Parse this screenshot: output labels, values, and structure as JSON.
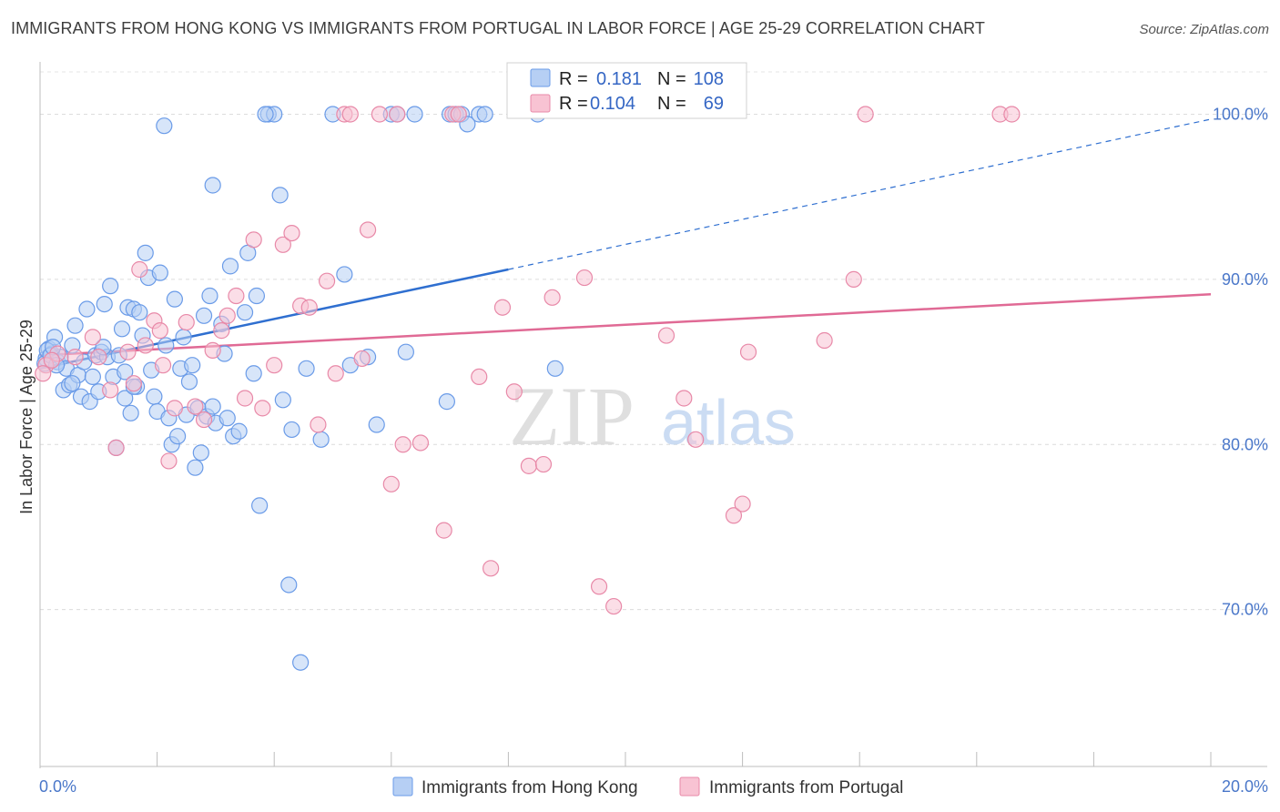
{
  "title": "IMMIGRANTS FROM HONG KONG VS IMMIGRANTS FROM PORTUGAL IN LABOR FORCE | AGE 25-29 CORRELATION CHART",
  "source": "Source: ZipAtlas.com",
  "watermark": {
    "zip": "ZIP",
    "atlas": "atlas"
  },
  "stats_box": {
    "rows": [
      {
        "r_label": "R =",
        "r_value": "0.181",
        "n_label": "N =",
        "n_value": "108",
        "color": "#6a9be8",
        "fill": "#b6cff4"
      },
      {
        "r_label": "R =",
        "r_value": "0.104",
        "n_label": "N =",
        "n_value": "69",
        "color": "#e889a8",
        "fill": "#f8c3d3"
      }
    ]
  },
  "chart_data": {
    "type": "scatter",
    "title": "IMMIGRANTS FROM HONG KONG VS IMMIGRANTS FROM PORTUGAL IN LABOR FORCE | AGE 25-29 CORRELATION CHART",
    "xlabel": "",
    "ylabel": "In Labor Force | Age 25-29",
    "xlim": [
      0,
      20
    ],
    "ylim": [
      60.5,
      103.5
    ],
    "x_tick_labels": [
      "0.0%",
      "20.0%"
    ],
    "y_ticks": [
      70,
      80,
      90,
      100
    ],
    "y_tick_labels": [
      "70.0%",
      "80.0%",
      "90.0%",
      "100.0%"
    ],
    "grid": true,
    "legend_position": "bottom-center",
    "series": [
      {
        "name": "Immigrants from Hong Kong",
        "color": "#6a9be8",
        "fill": "#b6cff4",
        "trend": {
          "x0": 0.0,
          "y0": 84.6,
          "x1": 8.0,
          "y1": 90.6,
          "x_dash_end": 20.0,
          "y_dash_end": 99.7,
          "color": "#2f6fd0"
        },
        "points": [
          [
            0.1,
            85.2
          ],
          [
            0.15,
            85.8
          ],
          [
            0.2,
            85.5
          ],
          [
            0.25,
            86.5
          ],
          [
            0.3,
            85.0
          ],
          [
            0.35,
            85.3
          ],
          [
            0.4,
            83.3
          ],
          [
            0.45,
            84.6
          ],
          [
            0.5,
            83.6
          ],
          [
            0.55,
            86.0
          ],
          [
            0.6,
            87.2
          ],
          [
            0.65,
            84.2
          ],
          [
            0.7,
            82.9
          ],
          [
            0.75,
            85.0
          ],
          [
            0.8,
            88.2
          ],
          [
            0.85,
            82.6
          ],
          [
            0.9,
            84.1
          ],
          [
            0.95,
            85.4
          ],
          [
            1.0,
            83.2
          ],
          [
            1.05,
            85.6
          ],
          [
            1.1,
            88.5
          ],
          [
            1.15,
            85.3
          ],
          [
            1.2,
            89.6
          ],
          [
            1.25,
            84.1
          ],
          [
            1.3,
            79.8
          ],
          [
            1.35,
            85.4
          ],
          [
            1.4,
            87.0
          ],
          [
            1.45,
            82.8
          ],
          [
            1.5,
            88.3
          ],
          [
            1.55,
            81.9
          ],
          [
            1.6,
            88.2
          ],
          [
            1.65,
            83.5
          ],
          [
            1.7,
            88.0
          ],
          [
            1.75,
            86.6
          ],
          [
            1.8,
            91.6
          ],
          [
            1.85,
            90.1
          ],
          [
            1.9,
            84.5
          ],
          [
            1.95,
            82.9
          ],
          [
            2.0,
            82.0
          ],
          [
            2.05,
            90.4
          ],
          [
            2.15,
            86.0
          ],
          [
            2.2,
            81.6
          ],
          [
            2.25,
            80.0
          ],
          [
            2.3,
            88.8
          ],
          [
            2.35,
            80.5
          ],
          [
            2.4,
            84.6
          ],
          [
            2.45,
            86.5
          ],
          [
            2.5,
            81.8
          ],
          [
            2.55,
            83.8
          ],
          [
            2.6,
            84.8
          ],
          [
            2.65,
            78.6
          ],
          [
            2.7,
            82.2
          ],
          [
            2.75,
            79.5
          ],
          [
            2.8,
            87.8
          ],
          [
            2.85,
            81.7
          ],
          [
            2.9,
            89.0
          ],
          [
            2.95,
            95.7
          ],
          [
            3.0,
            81.3
          ],
          [
            3.1,
            87.3
          ],
          [
            3.15,
            85.5
          ],
          [
            3.2,
            81.6
          ],
          [
            3.25,
            90.8
          ],
          [
            3.3,
            80.5
          ],
          [
            3.4,
            80.8
          ],
          [
            3.5,
            88.0
          ],
          [
            3.55,
            91.6
          ],
          [
            3.65,
            84.3
          ],
          [
            3.7,
            89.0
          ],
          [
            3.75,
            76.3
          ],
          [
            3.9,
            100.0
          ],
          [
            4.0,
            100.0
          ],
          [
            4.1,
            95.1
          ],
          [
            4.15,
            82.7
          ],
          [
            4.25,
            71.5
          ],
          [
            4.3,
            80.9
          ],
          [
            4.45,
            66.8
          ],
          [
            4.55,
            84.6
          ],
          [
            4.8,
            80.3
          ],
          [
            5.0,
            100.0
          ],
          [
            5.2,
            90.3
          ],
          [
            5.3,
            84.8
          ],
          [
            5.6,
            85.3
          ],
          [
            5.75,
            81.2
          ],
          [
            6.0,
            100.0
          ],
          [
            6.1,
            100.0
          ],
          [
            6.25,
            85.6
          ],
          [
            6.4,
            100.0
          ],
          [
            6.95,
            82.6
          ],
          [
            7.0,
            100.0
          ],
          [
            7.1,
            100.0
          ],
          [
            7.2,
            100.0
          ],
          [
            7.3,
            99.4
          ],
          [
            7.5,
            100.0
          ],
          [
            7.6,
            100.0
          ],
          [
            8.5,
            100.0
          ],
          [
            8.8,
            84.6
          ],
          [
            0.08,
            84.9
          ],
          [
            0.12,
            85.7
          ],
          [
            0.18,
            85.4
          ],
          [
            0.22,
            85.9
          ],
          [
            0.28,
            84.8
          ],
          [
            1.08,
            85.9
          ],
          [
            2.12,
            99.3
          ],
          [
            3.85,
            100.0
          ],
          [
            1.6,
            83.5
          ],
          [
            2.95,
            82.3
          ],
          [
            1.45,
            84.4
          ],
          [
            0.55,
            83.7
          ]
        ]
      },
      {
        "name": "Immigrants from Portugal",
        "color": "#e889a8",
        "fill": "#f8c3d3",
        "trend": {
          "x0": 0.0,
          "y0": 85.4,
          "x1": 20.0,
          "y1": 89.1,
          "color": "#e06a95"
        },
        "points": [
          [
            0.1,
            84.8
          ],
          [
            0.3,
            85.5
          ],
          [
            0.6,
            85.3
          ],
          [
            0.9,
            86.5
          ],
          [
            1.0,
            85.3
          ],
          [
            1.2,
            83.3
          ],
          [
            1.3,
            79.8
          ],
          [
            1.5,
            85.6
          ],
          [
            1.6,
            83.7
          ],
          [
            1.7,
            90.6
          ],
          [
            1.8,
            86.0
          ],
          [
            1.95,
            87.5
          ],
          [
            2.05,
            86.9
          ],
          [
            2.1,
            84.8
          ],
          [
            2.2,
            79.0
          ],
          [
            2.3,
            82.2
          ],
          [
            2.5,
            87.4
          ],
          [
            2.65,
            82.3
          ],
          [
            2.8,
            81.5
          ],
          [
            2.95,
            85.7
          ],
          [
            3.1,
            86.9
          ],
          [
            3.2,
            87.8
          ],
          [
            3.35,
            89.0
          ],
          [
            3.5,
            82.8
          ],
          [
            3.65,
            92.4
          ],
          [
            3.8,
            82.2
          ],
          [
            4.0,
            84.8
          ],
          [
            4.15,
            92.1
          ],
          [
            4.3,
            92.8
          ],
          [
            4.45,
            88.4
          ],
          [
            4.6,
            88.3
          ],
          [
            4.75,
            81.2
          ],
          [
            4.9,
            89.9
          ],
          [
            5.05,
            84.3
          ],
          [
            5.2,
            100.0
          ],
          [
            5.3,
            100.0
          ],
          [
            5.5,
            85.2
          ],
          [
            5.6,
            93.0
          ],
          [
            5.8,
            100.0
          ],
          [
            6.0,
            77.6
          ],
          [
            6.1,
            100.0
          ],
          [
            6.2,
            80.0
          ],
          [
            6.5,
            80.1
          ],
          [
            6.9,
            74.8
          ],
          [
            7.05,
            100.0
          ],
          [
            7.15,
            100.0
          ],
          [
            7.5,
            84.1
          ],
          [
            7.7,
            72.5
          ],
          [
            7.9,
            88.3
          ],
          [
            8.1,
            83.2
          ],
          [
            8.35,
            78.7
          ],
          [
            8.6,
            78.8
          ],
          [
            8.75,
            88.9
          ],
          [
            9.3,
            90.1
          ],
          [
            9.55,
            71.4
          ],
          [
            9.8,
            70.2
          ],
          [
            10.7,
            86.6
          ],
          [
            11.0,
            82.8
          ],
          [
            11.2,
            80.3
          ],
          [
            11.85,
            75.7
          ],
          [
            12.0,
            76.4
          ],
          [
            12.1,
            85.6
          ],
          [
            13.4,
            86.3
          ],
          [
            13.9,
            90.0
          ],
          [
            14.1,
            100.0
          ],
          [
            16.4,
            100.0
          ],
          [
            16.6,
            100.0
          ],
          [
            0.05,
            84.3
          ],
          [
            0.2,
            85.1
          ]
        ]
      }
    ]
  },
  "legend": {
    "items": [
      {
        "label": "Immigrants from Hong Kong",
        "color": "#6a9be8",
        "fill": "#b6cff4"
      },
      {
        "label": "Immigrants from Portugal",
        "color": "#e889a8",
        "fill": "#f8c3d3"
      }
    ]
  }
}
